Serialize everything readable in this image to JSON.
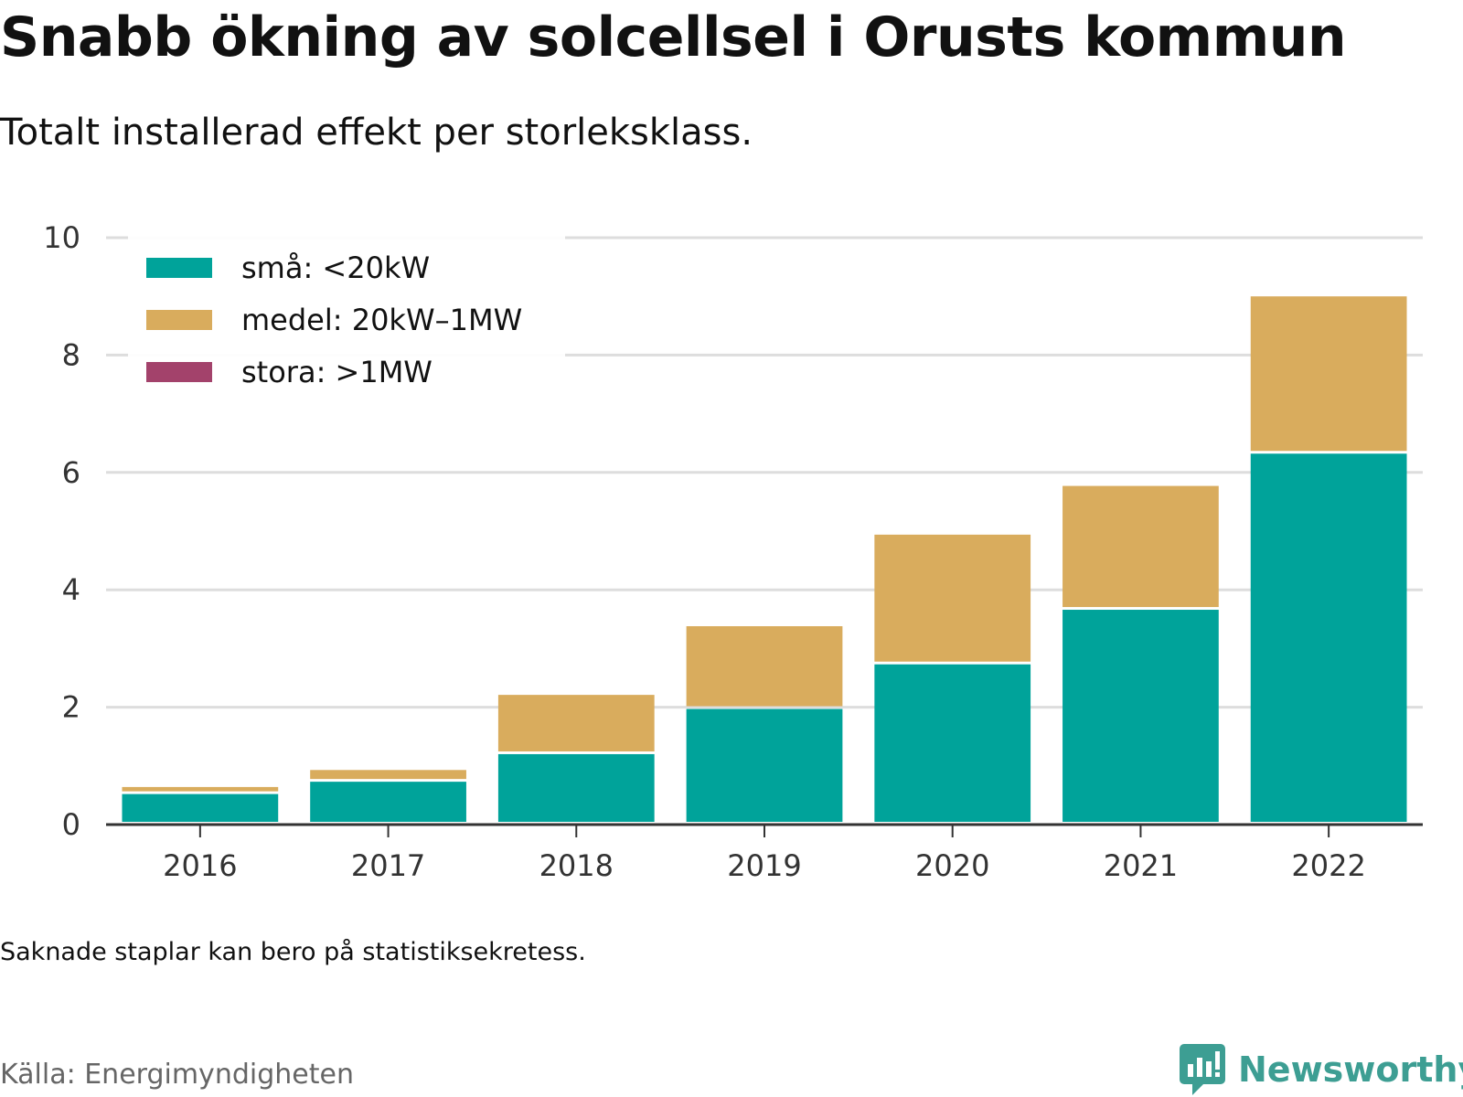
{
  "title": "Snabb ökning av solcellsel i Orusts kommun",
  "subtitle": "Totalt installerad effekt per storleksklass.",
  "note": "Saknade staplar kan bero på statistiksekretess.",
  "source": "Källa: Energimyndigheten",
  "brand": {
    "name": "Newsworthy",
    "icon": "newsworthy-logo-icon",
    "color": "#3d9e93"
  },
  "chart_data": {
    "type": "bar",
    "stacked": true,
    "categories": [
      "2016",
      "2017",
      "2018",
      "2019",
      "2020",
      "2021",
      "2022"
    ],
    "series": [
      {
        "name": "små: <20kW",
        "color": "#00a39a",
        "values": [
          0.52,
          0.73,
          1.2,
          1.97,
          2.73,
          3.66,
          6.32
        ]
      },
      {
        "name": "medel: 20kW–1MW",
        "color": "#d9ac5d",
        "values": [
          0.12,
          0.2,
          1.01,
          1.41,
          2.21,
          2.11,
          2.68
        ]
      },
      {
        "name": "stora: >1MW",
        "color": "#a3426b",
        "values": [
          0,
          0,
          0,
          0,
          0,
          0,
          0
        ]
      }
    ],
    "ylim": [
      0,
      10
    ],
    "yticks": [
      0,
      2,
      4,
      6,
      8,
      10
    ],
    "grid": true,
    "legend_position": "top-left"
  }
}
